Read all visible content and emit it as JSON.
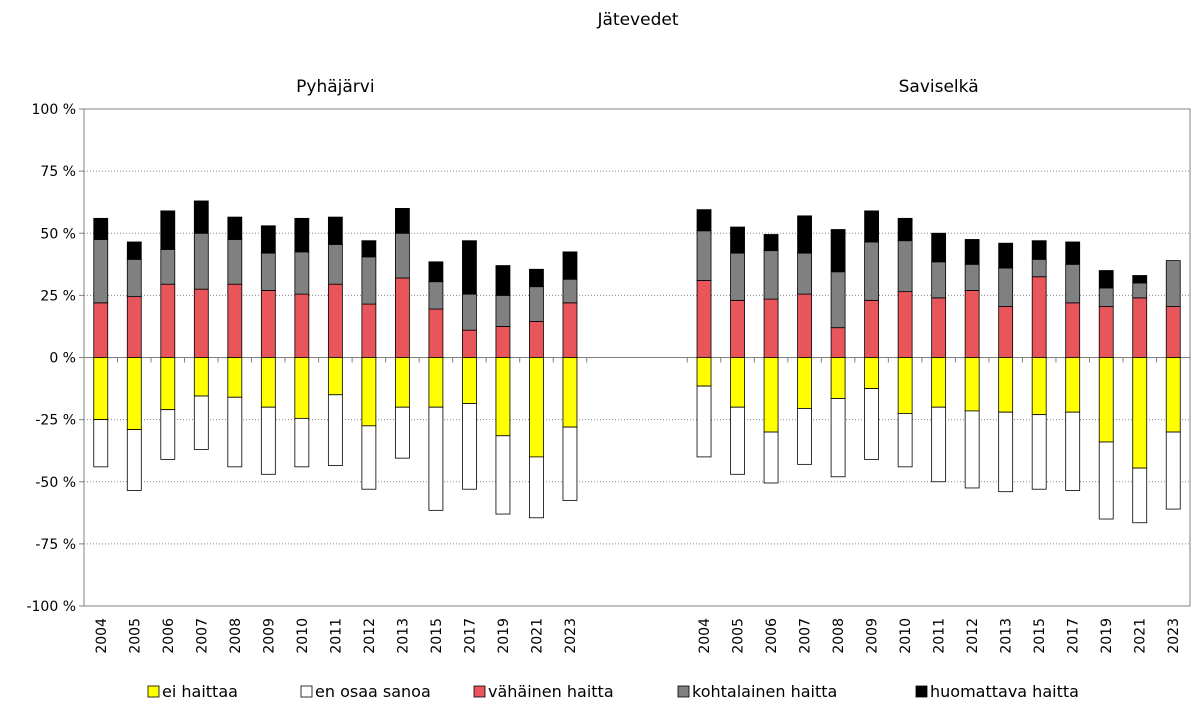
{
  "chart_data": {
    "type": "bar",
    "stacked": true,
    "diverging": true,
    "title": "Jätevedet",
    "panels": [
      {
        "title": "Pyhäjärvi",
        "categories": [
          "2004",
          "2005",
          "2006",
          "2007",
          "2008",
          "2009",
          "2010",
          "2011",
          "2012",
          "2013",
          "2015",
          "2017",
          "2019",
          "2021",
          "2023"
        ],
        "negative_series": [
          {
            "name": "ei haittaa",
            "color": "#ffff00",
            "values": [
              -25,
              -29,
              -21,
              -15.5,
              -16,
              -20,
              -24.5,
              -15,
              -27.5,
              -20,
              -20,
              -18.5,
              -31.5,
              -40,
              -28
            ]
          },
          {
            "name": "en osaa sanoa",
            "color": "#ffffff",
            "values": [
              -19,
              -24.5,
              -20,
              -21.5,
              -28,
              -27,
              -19.5,
              -28.5,
              -25.5,
              -20.5,
              -41.5,
              -34.5,
              -31.5,
              -24.5,
              -29.5
            ]
          }
        ],
        "positive_series": [
          {
            "name": "vähäinen haitta",
            "color": "#e8555a",
            "values": [
              22,
              24.5,
              29.5,
              27.5,
              29.5,
              27,
              25.5,
              29.5,
              21.5,
              32,
              19.5,
              11,
              12.5,
              14.5,
              22
            ]
          },
          {
            "name": "kohtalainen haitta",
            "color": "#808080",
            "values": [
              25.5,
              15,
              14,
              22.5,
              18,
              15,
              17,
              16,
              19,
              18,
              11,
              14.5,
              12.5,
              14,
              9.5
            ]
          },
          {
            "name": "huomattava haitta",
            "color": "#000000",
            "values": [
              8.5,
              7,
              15.5,
              13,
              9,
              11,
              13.5,
              11,
              6.5,
              10,
              8,
              21.5,
              12,
              7,
              11
            ]
          }
        ]
      },
      {
        "title": "Saviselkä",
        "categories": [
          "2004",
          "2005",
          "2006",
          "2007",
          "2008",
          "2009",
          "2010",
          "2011",
          "2012",
          "2013",
          "2015",
          "2017",
          "2019",
          "2021",
          "2023"
        ],
        "negative_series": [
          {
            "name": "ei haittaa",
            "color": "#ffff00",
            "values": [
              -11.5,
              -20,
              -30,
              -20.5,
              -16.5,
              -12.5,
              -22.5,
              -20,
              -21.5,
              -22,
              -23,
              -22,
              -34,
              -44.5,
              -30
            ]
          },
          {
            "name": "en osaa sanoa",
            "color": "#ffffff",
            "values": [
              -28.5,
              -27,
              -20.5,
              -22.5,
              -31.5,
              -28.5,
              -21.5,
              -30,
              -31,
              -32,
              -30,
              -31.5,
              -31,
              -22,
              -31
            ]
          }
        ],
        "positive_series": [
          {
            "name": "vähäinen haitta",
            "color": "#e8555a",
            "values": [
              31,
              23,
              23.5,
              25.5,
              12,
              23,
              26.5,
              24,
              27,
              20.5,
              32.5,
              22,
              20.5,
              24,
              20.5
            ]
          },
          {
            "name": "kohtalainen haitta",
            "color": "#808080",
            "values": [
              20,
              19,
              19.5,
              16.5,
              22.5,
              23.5,
              20.5,
              14.5,
              10.5,
              15.5,
              7,
              15.5,
              7.5,
              6,
              18.5
            ]
          },
          {
            "name": "huomattava haitta",
            "color": "#000000",
            "values": [
              8.5,
              10.5,
              6.5,
              15,
              17,
              12.5,
              9,
              11.5,
              10,
              10,
              7.5,
              9,
              7,
              3,
              0
            ]
          }
        ]
      }
    ],
    "y_tick_labels": [
      "100 %",
      "75 %",
      "50 %",
      "25 %",
      "0 %",
      "-25 %",
      "-50 %",
      "-75 %",
      "-100 %"
    ],
    "ylim": [
      -100,
      100
    ],
    "ystep": 25,
    "grid": true,
    "legend_position": "bottom",
    "legend": [
      {
        "name": "ei haittaa",
        "color": "#ffff00"
      },
      {
        "name": "en osaa sanoa",
        "color": "#ffffff"
      },
      {
        "name": "vähäinen haitta",
        "color": "#e8555a"
      },
      {
        "name": "kohtalainen haitta",
        "color": "#808080"
      },
      {
        "name": "huomattava haitta",
        "color": "#000000"
      }
    ]
  }
}
